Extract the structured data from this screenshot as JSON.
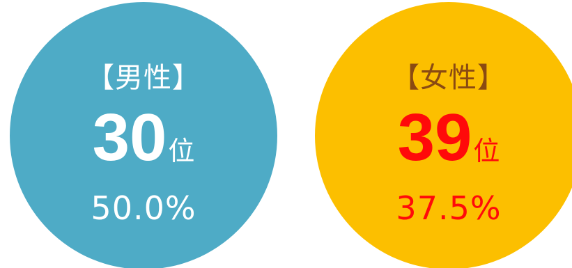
{
  "male": {
    "label": "【男性】",
    "rank": "30",
    "rank_unit": "位",
    "percent": "50.0%",
    "circle_color": "#4eabc6",
    "text_color": "#ffffff"
  },
  "female": {
    "label": "【女性】",
    "rank": "39",
    "rank_unit": "位",
    "percent": "37.5%",
    "circle_color": "#fcbf00",
    "label_color": "#8a4a12",
    "accent_color": "#ff0a0a"
  }
}
